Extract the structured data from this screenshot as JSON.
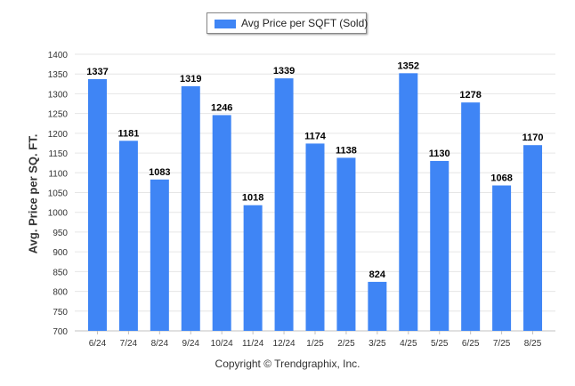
{
  "chart_data": {
    "type": "bar",
    "categories": [
      "6/24",
      "7/24",
      "8/24",
      "9/24",
      "10/24",
      "11/24",
      "12/24",
      "1/25",
      "2/25",
      "3/25",
      "4/25",
      "5/25",
      "6/25",
      "7/25",
      "8/25"
    ],
    "series": [
      {
        "name": "Avg Price per SQFT (Sold)",
        "values": [
          1337,
          1181,
          1083,
          1319,
          1246,
          1018,
          1339,
          1174,
          1138,
          824,
          1352,
          1130,
          1278,
          1068,
          1170
        ]
      }
    ],
    "ylabel": "Avg. Price per SQ. FT.",
    "xlabel": "",
    "ylim": [
      700,
      1400
    ],
    "yticks": [
      700,
      750,
      800,
      850,
      900,
      950,
      1000,
      1050,
      1100,
      1150,
      1200,
      1250,
      1300,
      1350,
      1400
    ],
    "grid": true,
    "legend_position": "top-center",
    "bar_color": "#3f85f5",
    "data_labels": true
  },
  "footer": {
    "copyright": "Copyright © Trendgraphix, Inc."
  }
}
